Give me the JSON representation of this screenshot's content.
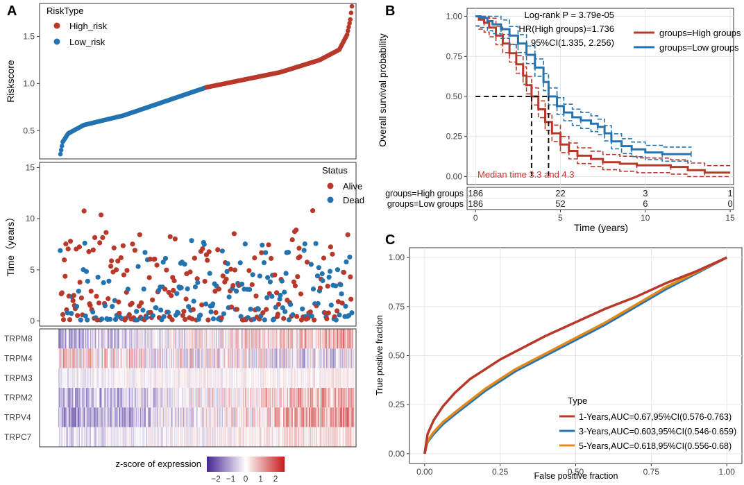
{
  "colors": {
    "high": "#B8382A",
    "low": "#2373B1",
    "orange": "#E08A1E",
    "grid": "#e6e6e6"
  },
  "panel_labels": [
    "A",
    "B",
    "C"
  ],
  "chart_data": [
    {
      "id": "riskscore",
      "type": "scatter",
      "ylabel": "Riskscore",
      "ylim": [
        0.2,
        1.85
      ],
      "yticks": [
        0.5,
        1.0,
        1.5
      ],
      "ytick_labels": [
        "0.5",
        "1.0",
        "1.5"
      ],
      "n_points": 372,
      "legend_title": "RiskType",
      "legend": [
        "High_risk",
        "Low_risk"
      ],
      "curve_knots": [
        [
          0,
          0.25
        ],
        [
          3,
          0.38
        ],
        [
          10,
          0.47
        ],
        [
          30,
          0.56
        ],
        [
          80,
          0.66
        ],
        [
          186,
          0.96
        ],
        [
          280,
          1.12
        ],
        [
          330,
          1.25
        ],
        [
          355,
          1.36
        ],
        [
          365,
          1.52
        ],
        [
          369,
          1.68
        ],
        [
          371,
          1.82
        ]
      ]
    },
    {
      "id": "survival-time",
      "type": "scatter",
      "ylabel": "Time（years）",
      "ylim": [
        -0.5,
        15.5
      ],
      "yticks": [
        0,
        5,
        10,
        15
      ],
      "ytick_labels": [
        "0",
        "5",
        "10",
        "15"
      ],
      "legend_title": "Status",
      "legend": [
        "Alive",
        "Dead"
      ],
      "n_points": 372
    },
    {
      "id": "heatmap",
      "type": "heatmap",
      "rows": [
        "TRPM8",
        "TRPM4",
        "TRPM3",
        "TRPM2",
        "TRPV4",
        "TRPC7"
      ],
      "n_columns": 372,
      "colorbar_title": "z-score of expression",
      "colorbar_ticks": [
        -2,
        -1,
        0,
        1,
        2
      ],
      "colorbar_labels": [
        "−2",
        "−1",
        "0",
        "1",
        "2"
      ]
    },
    {
      "id": "km",
      "type": "line",
      "xlabel": "Time (years)",
      "ylabel": "Overall survival probability",
      "xlim": [
        -0.5,
        15.2
      ],
      "ylim": [
        -0.05,
        1.05
      ],
      "xticks": [
        0,
        5,
        10,
        15
      ],
      "xtick_labels": [
        "0",
        "5",
        "10",
        "15"
      ],
      "yticks": [
        0,
        0.25,
        0.5,
        0.75,
        1.0
      ],
      "ytick_labels": [
        "0.00",
        "0.25",
        "0.50",
        "0.75",
        "1.00"
      ],
      "annotation_lines": [
        "Log-rank P = 3.79e-05",
        "HR(High groups)=1.736",
        "95%CI(1.335, 2.256)"
      ],
      "median_text": "Median time 3.3 and 4.3",
      "medians": [
        3.3,
        4.3
      ],
      "series": [
        {
          "name": "groups=High groups",
          "color": "high",
          "x": [
            0,
            0.2,
            0.5,
            0.8,
            1.2,
            1.6,
            2.0,
            2.4,
            2.8,
            3.0,
            3.3,
            3.7,
            4.1,
            4.5,
            5.0,
            5.5,
            6.0,
            6.8,
            7.5,
            8.5,
            9.5,
            10.5,
            11.5,
            12.5,
            13.5,
            15.0
          ],
          "y": [
            1.0,
            0.98,
            0.96,
            0.93,
            0.88,
            0.83,
            0.77,
            0.7,
            0.63,
            0.57,
            0.5,
            0.42,
            0.34,
            0.27,
            0.2,
            0.16,
            0.13,
            0.11,
            0.09,
            0.08,
            0.07,
            0.07,
            0.06,
            0.04,
            0.025,
            0.025
          ]
        },
        {
          "name": "groups=Low groups",
          "color": "low",
          "x": [
            0,
            0.3,
            0.7,
            1.0,
            1.5,
            2.0,
            2.5,
            3.0,
            3.5,
            4.0,
            4.3,
            4.8,
            5.2,
            5.7,
            6.2,
            6.8,
            7.2,
            7.6,
            8.0,
            8.6,
            9.2,
            10.0,
            11.0,
            12.0,
            12.7
          ],
          "y": [
            1.0,
            0.99,
            0.97,
            0.95,
            0.92,
            0.88,
            0.83,
            0.76,
            0.68,
            0.59,
            0.5,
            0.44,
            0.4,
            0.37,
            0.35,
            0.33,
            0.31,
            0.27,
            0.22,
            0.19,
            0.17,
            0.15,
            0.14,
            0.14,
            0.14
          ]
        }
      ],
      "legend": [
        "groups=High groups",
        "groups=Low groups"
      ],
      "risk_table": {
        "rows": [
          "groups=High groups",
          "groups=Low groups"
        ],
        "times": [
          0,
          5,
          10,
          15
        ],
        "values": [
          [
            "186",
            "22",
            "3",
            "1"
          ],
          [
            "186",
            "52",
            "6",
            "0"
          ]
        ]
      }
    },
    {
      "id": "roc",
      "type": "line",
      "xlabel": "False positive fraction",
      "ylabel": "True positive fraction",
      "xlim": [
        -0.05,
        1.05
      ],
      "ylim": [
        -0.05,
        1.05
      ],
      "xticks": [
        0,
        0.25,
        0.5,
        0.75,
        1.0
      ],
      "xtick_labels": [
        "0.00",
        "0.25",
        "0.50",
        "0.75",
        "1.00"
      ],
      "yticks": [
        0,
        0.25,
        0.5,
        0.75,
        1.0
      ],
      "ytick_labels": [
        "0.00",
        "0.25",
        "0.50",
        "0.75",
        "1.00"
      ],
      "legend_title": "Type",
      "series": [
        {
          "name": "1-Years,AUC=0.67,95%CI(0.576-0.763)",
          "color": "high",
          "x": [
            0,
            0.01,
            0.03,
            0.06,
            0.1,
            0.15,
            0.2,
            0.25,
            0.3,
            0.4,
            0.5,
            0.6,
            0.7,
            0.8,
            0.9,
            1.0
          ],
          "y": [
            0,
            0.1,
            0.17,
            0.24,
            0.31,
            0.38,
            0.43,
            0.48,
            0.52,
            0.6,
            0.67,
            0.74,
            0.8,
            0.87,
            0.93,
            1.0
          ]
        },
        {
          "name": "3-Years,AUC=0.603,95%CI(0.546-0.659)",
          "color": "low",
          "x": [
            0,
            0.01,
            0.03,
            0.06,
            0.1,
            0.15,
            0.2,
            0.25,
            0.3,
            0.4,
            0.5,
            0.6,
            0.7,
            0.8,
            0.9,
            1.0
          ],
          "y": [
            0,
            0.06,
            0.1,
            0.15,
            0.2,
            0.26,
            0.32,
            0.37,
            0.42,
            0.5,
            0.58,
            0.66,
            0.75,
            0.84,
            0.92,
            1.0
          ]
        },
        {
          "name": "5-Years,AUC=0.618,95%CI(0.556-0.68)",
          "color": "orange",
          "x": [
            0,
            0.01,
            0.03,
            0.06,
            0.1,
            0.15,
            0.2,
            0.25,
            0.3,
            0.4,
            0.5,
            0.6,
            0.7,
            0.8,
            0.9,
            1.0
          ],
          "y": [
            0,
            0.065,
            0.11,
            0.16,
            0.21,
            0.27,
            0.33,
            0.38,
            0.43,
            0.51,
            0.59,
            0.67,
            0.76,
            0.85,
            0.925,
            1.0
          ]
        }
      ]
    }
  ]
}
